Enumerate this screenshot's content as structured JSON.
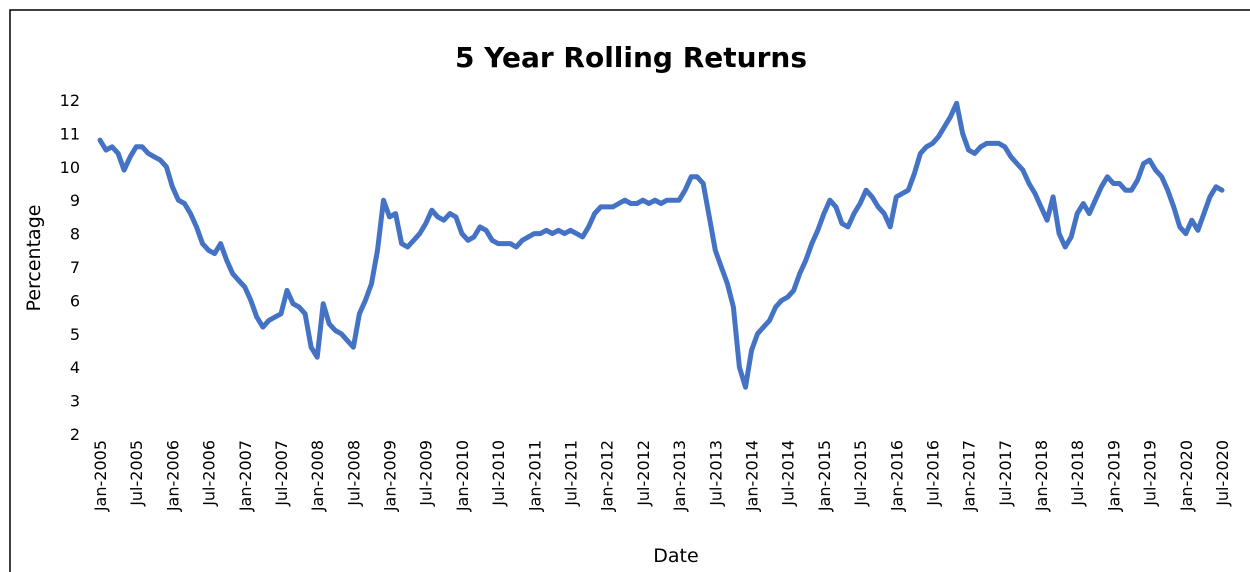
{
  "chart_data": {
    "type": "line",
    "title": "5 Year Rolling Returns",
    "x_label": "Date",
    "y_label": "Percentage",
    "categories": [
      "Jan-2005",
      null,
      null,
      null,
      null,
      null,
      "Jul-2005",
      null,
      null,
      null,
      null,
      null,
      "Jan-2006",
      null,
      null,
      null,
      null,
      null,
      "Jul-2006",
      null,
      null,
      null,
      null,
      null,
      "Jan-2007",
      null,
      null,
      null,
      null,
      null,
      "Jul-2007",
      null,
      null,
      null,
      null,
      null,
      "Jan-2008",
      null,
      null,
      null,
      null,
      null,
      "Jul-2008",
      null,
      null,
      null,
      null,
      null,
      "Jan-2009",
      null,
      null,
      null,
      null,
      null,
      "Jul-2009",
      null,
      null,
      null,
      null,
      null,
      "Jan-2010",
      null,
      null,
      null,
      null,
      null,
      "Jul-2010",
      null,
      null,
      null,
      null,
      null,
      "Jan-2011",
      null,
      null,
      null,
      null,
      null,
      "Jul-2011",
      null,
      null,
      null,
      null,
      null,
      "Jan-2012",
      null,
      null,
      null,
      null,
      null,
      "Jul-2012",
      null,
      null,
      null,
      null,
      null,
      "Jan-2013",
      null,
      null,
      null,
      null,
      null,
      "Jul-2013",
      null,
      null,
      null,
      null,
      null,
      "Jan-2014",
      null,
      null,
      null,
      null,
      null,
      "Jul-2014",
      null,
      null,
      null,
      null,
      null,
      "Jan-2015",
      null,
      null,
      null,
      null,
      null,
      "Jul-2015",
      null,
      null,
      null,
      null,
      null,
      "Jan-2016",
      null,
      null,
      null,
      null,
      null,
      "Jul-2016",
      null,
      null,
      null,
      null,
      null,
      "Jan-2017",
      null,
      null,
      null,
      null,
      null,
      "Jul-2017",
      null,
      null,
      null,
      null,
      null,
      "Jan-2018",
      null,
      null,
      null,
      null,
      null,
      "Jul-2018",
      null,
      null,
      null,
      null,
      null,
      "Jan-2019",
      null,
      null,
      null,
      null,
      null,
      "Jul-2019",
      null,
      null,
      null,
      null,
      null,
      "Jan-2020",
      null,
      null,
      null,
      null,
      null,
      "Jul-2020"
    ],
    "series": [
      {
        "color": "#4472c4",
        "values": [
          10.8,
          10.5,
          10.6,
          10.4,
          9.9,
          10.3,
          10.6,
          10.6,
          10.4,
          10.3,
          10.2,
          10.0,
          9.4,
          9.0,
          8.9,
          8.6,
          8.2,
          7.7,
          7.5,
          7.4,
          7.7,
          7.2,
          6.8,
          6.6,
          6.4,
          6.0,
          5.5,
          5.2,
          5.4,
          5.5,
          5.6,
          6.3,
          5.9,
          5.8,
          5.6,
          4.6,
          4.3,
          5.9,
          5.3,
          5.1,
          5.0,
          4.8,
          4.6,
          5.6,
          6.0,
          6.5,
          7.5,
          9.0,
          8.5,
          8.6,
          7.7,
          7.6,
          7.8,
          8.0,
          8.3,
          8.7,
          8.5,
          8.4,
          8.6,
          8.5,
          8.0,
          7.8,
          7.9,
          8.2,
          8.1,
          7.8,
          7.7,
          7.7,
          7.7,
          7.6,
          7.8,
          7.9,
          8.0,
          8.0,
          8.1,
          8.0,
          8.1,
          8.0,
          8.1,
          8.0,
          7.9,
          8.2,
          8.6,
          8.8,
          8.8,
          8.8,
          8.9,
          9.0,
          8.9,
          8.9,
          9.0,
          8.9,
          9.0,
          8.9,
          9.0,
          9.0,
          9.0,
          9.3,
          9.7,
          9.7,
          9.5,
          8.5,
          7.5,
          7.0,
          6.5,
          5.8,
          4.0,
          3.4,
          4.5,
          5.0,
          5.2,
          5.4,
          5.8,
          6.0,
          6.1,
          6.3,
          6.8,
          7.2,
          7.7,
          8.1,
          8.6,
          9.0,
          8.8,
          8.3,
          8.2,
          8.6,
          8.9,
          9.3,
          9.1,
          8.8,
          8.6,
          8.2,
          9.1,
          9.2,
          9.3,
          9.8,
          10.4,
          10.6,
          10.7,
          10.9,
          11.2,
          11.5,
          11.9,
          11.0,
          10.5,
          10.4,
          10.6,
          10.7,
          10.7,
          10.7,
          10.6,
          10.3,
          10.1,
          9.9,
          9.5,
          9.2,
          8.8,
          8.4,
          9.1,
          8.0,
          7.6,
          7.9,
          8.6,
          8.9,
          8.6,
          9.0,
          9.4,
          9.7,
          9.5,
          9.5,
          9.3,
          9.3,
          9.6,
          10.1,
          10.2,
          9.9,
          9.7,
          9.3,
          8.8,
          8.2,
          8.0,
          8.4,
          8.1,
          8.6,
          9.1,
          9.4,
          9.3
        ]
      }
    ],
    "ylim": [
      2,
      12
    ],
    "yticks": [
      2,
      3,
      4,
      5,
      6,
      7,
      8,
      9,
      10,
      11,
      12
    ],
    "grid": false
  }
}
